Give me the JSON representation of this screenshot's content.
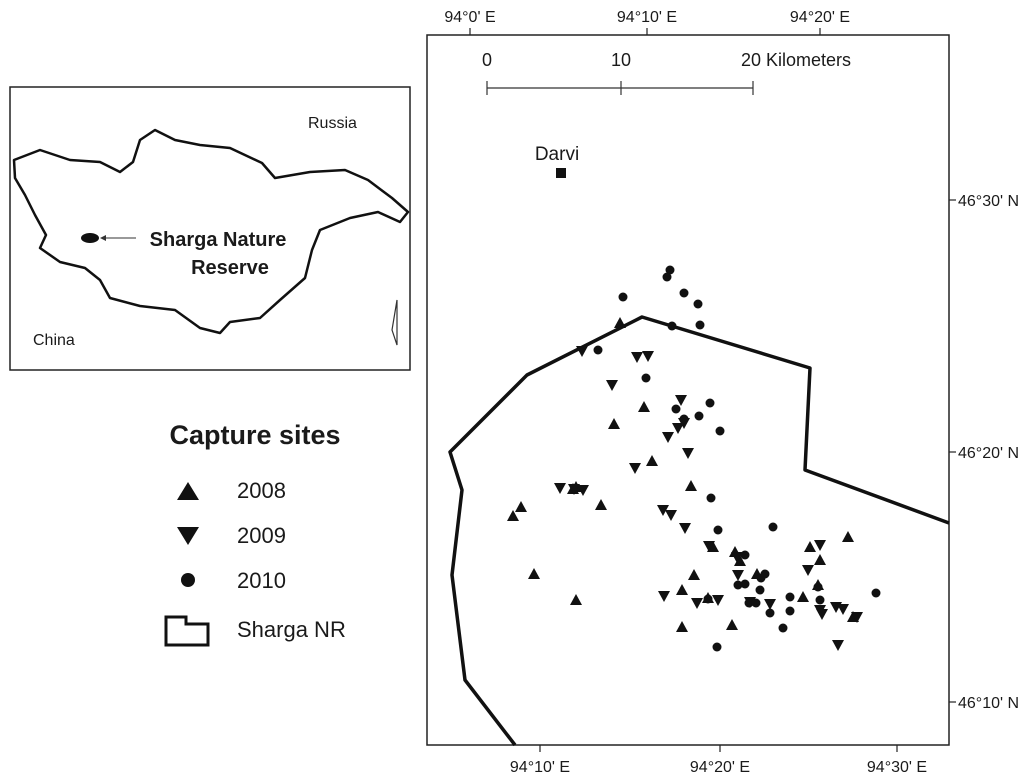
{
  "map": {
    "top_axis_labels": [
      "94°0' E",
      "94°10' E",
      "94°20' E"
    ],
    "bottom_axis_labels": [
      "94°10' E",
      "94°20' E",
      "94°30' E"
    ],
    "right_axis_labels": [
      "46°30' N",
      "46°20' N",
      "46°10' N"
    ],
    "scale_bar": [
      "0",
      "10",
      "20 Kilometers"
    ],
    "place_label": "Darvi"
  },
  "inset": {
    "labels": [
      "Russia",
      "China"
    ],
    "reserve_label": [
      "Sharga Nature",
      "Reserve"
    ]
  },
  "legend": {
    "title": "Capture sites",
    "items": [
      "2008",
      "2009",
      "2010",
      "Sharga NR"
    ]
  }
}
